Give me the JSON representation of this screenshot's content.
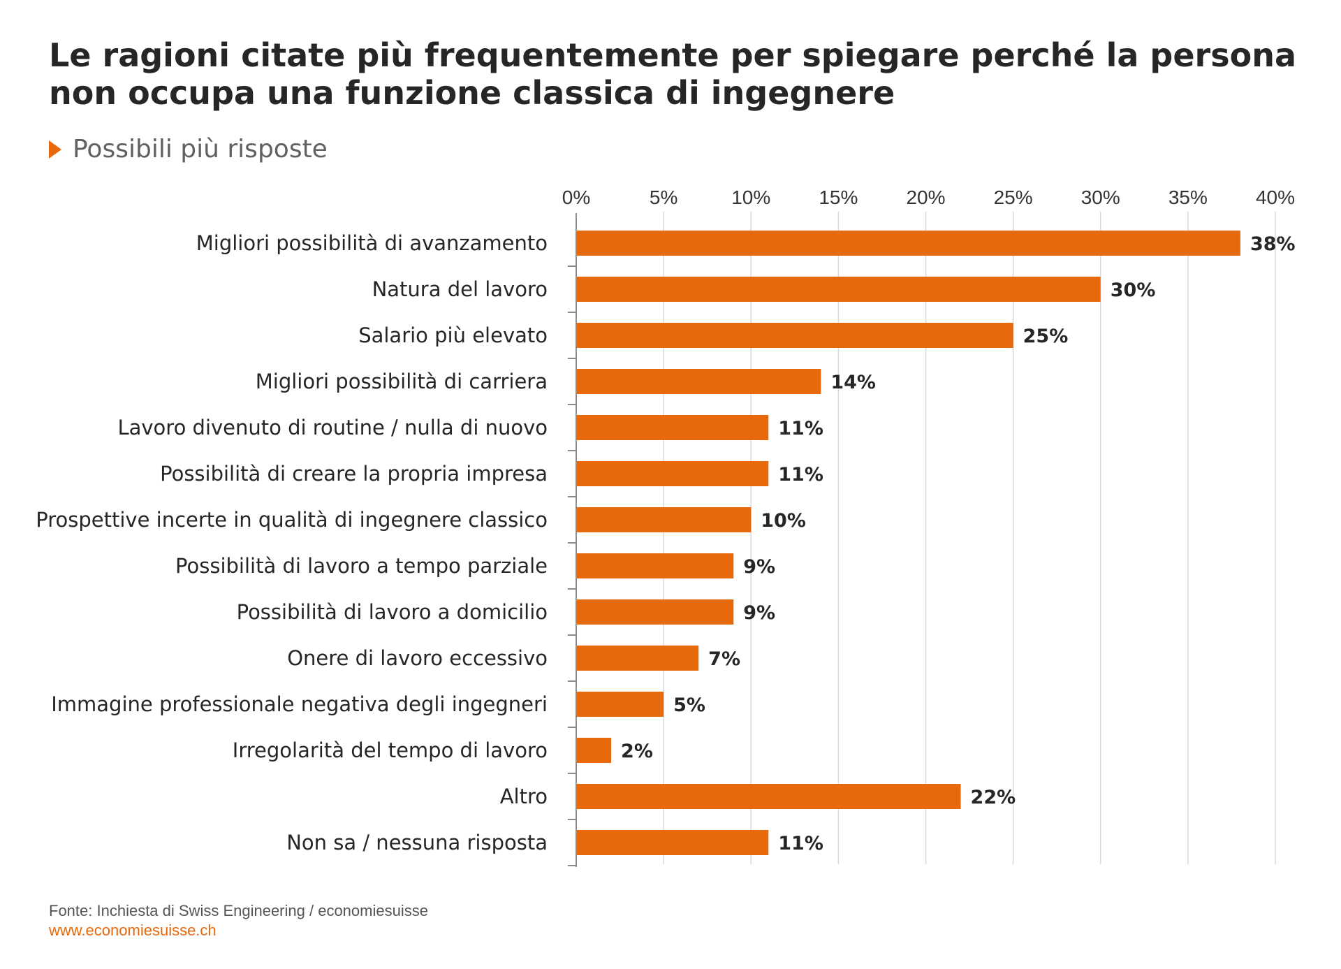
{
  "chart_data": {
    "type": "bar",
    "orientation": "horizontal",
    "title": "Le ragioni citate più frequentemente per spiegare perché la persona non occupa una funzione classica di ingegnere",
    "subtitle": "Possibili più risposte",
    "categories": [
      "Migliori possibilità di avanzamento",
      "Natura del lavoro",
      "Salario più elevato",
      "Migliori possibilità di carriera",
      "Lavoro divenuto di routine / nulla di nuovo",
      "Possibilità di creare la propria impresa",
      "Prospettive incerte in qualità di ingegnere classico",
      "Possibilità di lavoro a tempo parziale",
      "Possibilità di lavoro a domicilio",
      "Onere di lavoro eccessivo",
      "Immagine professionale negativa degli ingegneri",
      "Irregolarità del tempo di lavoro",
      "Altro",
      "Non sa / nessuna risposta"
    ],
    "values": [
      38,
      30,
      25,
      14,
      11,
      11,
      10,
      9,
      9,
      7,
      5,
      2,
      22,
      11
    ],
    "value_labels": [
      "38%",
      "30%",
      "25%",
      "14%",
      "11%",
      "11%",
      "10%",
      "9%",
      "9%",
      "7%",
      "5%",
      "2%",
      "22%",
      "11%"
    ],
    "xlim": [
      0,
      40
    ],
    "x_ticks": [
      "0%",
      "5%",
      "10%",
      "15%",
      "20%",
      "25%",
      "30%",
      "35%",
      "40%"
    ],
    "x_axis_position": "top",
    "grid": true,
    "legend": "none",
    "bar_color": "#e8680c",
    "grid_color": "#d9d9d9"
  },
  "footer": {
    "source": "Fonte: Inchiesta di Swiss Engineering / economiesuisse",
    "url": "www.economiesuisse.ch"
  },
  "colors": {
    "accent": "#e8680c",
    "title": "#262626",
    "subtitle": "#606060"
  }
}
